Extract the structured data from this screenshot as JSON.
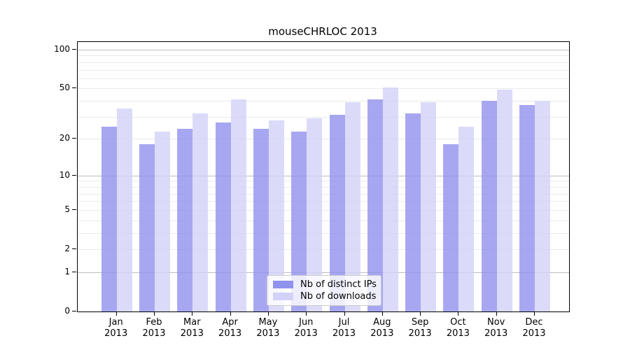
{
  "title": "mouseCHRLOC 2013",
  "chart_data": {
    "type": "bar",
    "title": "mouseCHRLOC 2013",
    "categories": [
      "Jan",
      "Feb",
      "Mar",
      "Apr",
      "May",
      "Jun",
      "Jul",
      "Aug",
      "Sep",
      "Oct",
      "Nov",
      "Dec"
    ],
    "category_year": "2013",
    "series": [
      {
        "name": "Nb of distinct IPs",
        "color": "#9191ee",
        "values": [
          25,
          18,
          24,
          27,
          24,
          23,
          31,
          41,
          32,
          18,
          40,
          37
        ]
      },
      {
        "name": "Nb of downloads",
        "color": "#d2d2f8",
        "values": [
          35,
          23,
          32,
          41,
          28,
          29,
          39,
          51,
          39,
          25,
          49,
          40
        ]
      }
    ],
    "yscale": "log10(1+x)",
    "ylim": [
      0,
      115
    ],
    "ytick_labels": [
      "100",
      "50",
      "20",
      "10",
      "5",
      "2",
      "1",
      "0"
    ],
    "ytick_values": [
      100,
      50,
      20,
      10,
      5,
      2,
      1,
      0
    ],
    "grid_major": [
      1,
      10,
      100
    ],
    "grid_minor": [
      2,
      3,
      4,
      5,
      6,
      7,
      8,
      9,
      20,
      30,
      40,
      50,
      60,
      70,
      80,
      90
    ],
    "legend_position": "bottom-center",
    "colors": {
      "axis": "#000000",
      "major_grid": "#bdbdbd",
      "minor_grid": "#ebebeb",
      "background": "#ffffff"
    }
  }
}
